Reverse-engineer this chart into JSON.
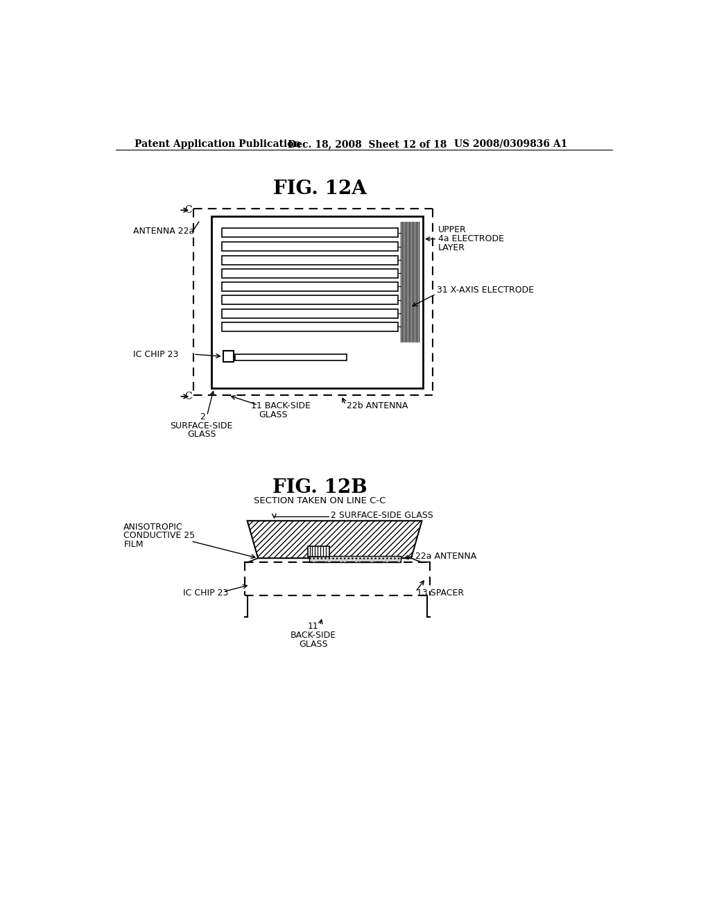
{
  "bg_color": "#ffffff",
  "header_text": "Patent Application Publication",
  "header_date": "Dec. 18, 2008  Sheet 12 of 18",
  "header_patent": "US 2008/0309836 A1",
  "fig12a_title": "FIG. 12A",
  "fig12b_title": "FIG. 12B",
  "fig12b_subtitle": "SECTION TAKEN ON LINE C-C"
}
